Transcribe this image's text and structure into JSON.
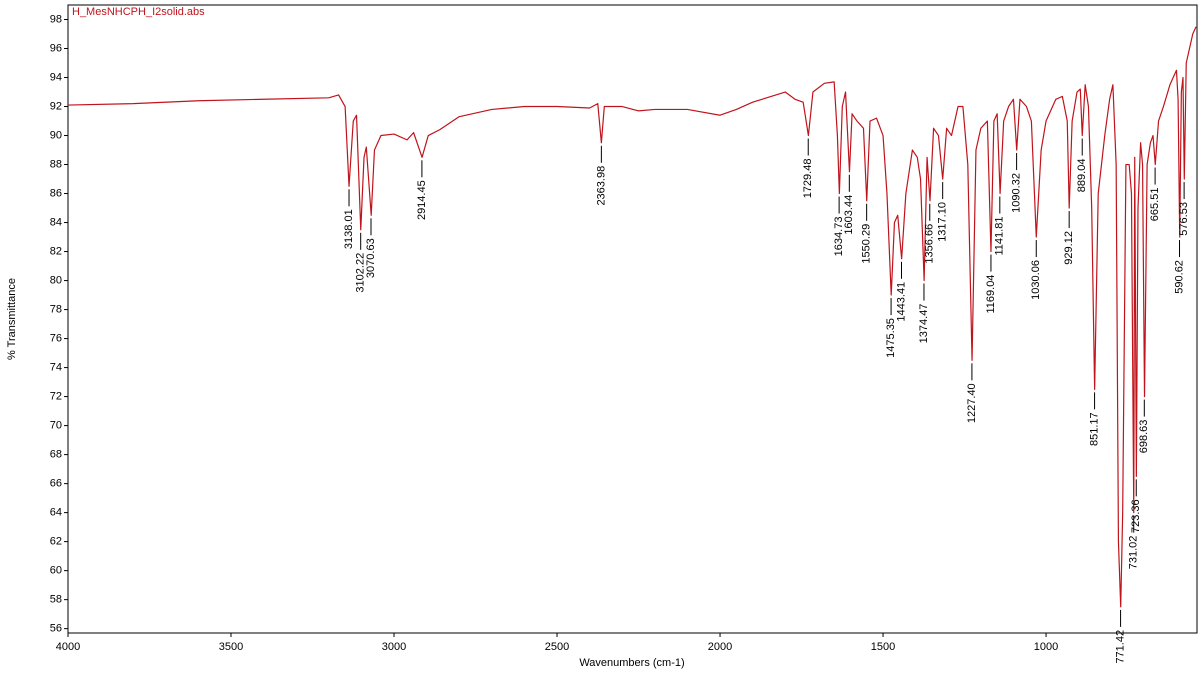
{
  "chart_data": {
    "type": "line",
    "title": "H_MesNHCPH_I2solid.abs",
    "xlabel": "Wavenumbers (cm-1)",
    "ylabel": "% Transmittance",
    "color": "#c0141c",
    "xlim": [
      4000,
      537
    ],
    "ylim": [
      55.7,
      99
    ],
    "xticks": [
      4000,
      3500,
      3000,
      2500,
      2000,
      1500,
      1000
    ],
    "yticks": [
      56,
      58,
      60,
      62,
      64,
      66,
      68,
      70,
      72,
      74,
      76,
      78,
      80,
      82,
      84,
      86,
      88,
      90,
      92,
      94,
      96,
      98
    ],
    "x": [
      4000,
      3800,
      3600,
      3400,
      3200,
      3170,
      3150,
      3138,
      3125,
      3115,
      3102,
      3092,
      3085,
      3070,
      3060,
      3040,
      3000,
      2960,
      2940,
      2914,
      2895,
      2860,
      2800,
      2700,
      2600,
      2500,
      2400,
      2375,
      2364,
      2355,
      2300,
      2250,
      2200,
      2100,
      2000,
      1950,
      1900,
      1800,
      1770,
      1745,
      1729,
      1715,
      1680,
      1650,
      1640,
      1634,
      1625,
      1615,
      1603,
      1595,
      1580,
      1560,
      1550,
      1540,
      1520,
      1500,
      1488,
      1475,
      1465,
      1455,
      1443,
      1430,
      1410,
      1395,
      1385,
      1374,
      1365,
      1356,
      1345,
      1330,
      1317,
      1305,
      1290,
      1270,
      1255,
      1240,
      1227,
      1215,
      1200,
      1180,
      1169,
      1160,
      1150,
      1141,
      1130,
      1115,
      1100,
      1090,
      1080,
      1060,
      1045,
      1030,
      1015,
      1000,
      970,
      950,
      935,
      929,
      920,
      905,
      895,
      889,
      880,
      870,
      860,
      851,
      840,
      820,
      805,
      795,
      785,
      778,
      771,
      765,
      755,
      745,
      738,
      731,
      728,
      723,
      718,
      710,
      704,
      698,
      690,
      680,
      672,
      665,
      655,
      640,
      620,
      600,
      595,
      590,
      585,
      580,
      576,
      570,
      560,
      550,
      540
    ],
    "values": [
      92.1,
      92.2,
      92.4,
      92.5,
      92.6,
      92.8,
      92,
      86.5,
      91,
      91.4,
      83.5,
      88.5,
      89.2,
      84.5,
      89,
      90,
      90.1,
      89.7,
      90.2,
      88.5,
      90,
      90.4,
      91.3,
      91.8,
      92,
      92,
      91.9,
      92.2,
      89.5,
      92,
      92,
      91.7,
      91.8,
      91.8,
      91.4,
      91.8,
      92.3,
      93,
      92.5,
      92.3,
      90,
      93,
      93.6,
      93.7,
      90,
      86,
      92,
      93,
      87.5,
      91.5,
      91,
      90.5,
      85.5,
      91,
      91.2,
      90,
      86,
      79,
      84,
      84.5,
      81.5,
      86,
      89,
      88.5,
      87,
      80,
      88.5,
      85.5,
      90.5,
      90,
      87,
      90.5,
      90,
      92,
      92,
      88,
      74.5,
      89,
      90.5,
      91,
      82,
      91,
      91.5,
      86,
      91,
      92,
      92.5,
      89,
      92.5,
      92,
      91,
      83,
      89,
      91,
      92.5,
      92.7,
      91,
      85,
      91,
      93,
      93.2,
      90,
      93.5,
      92,
      85,
      72.5,
      86,
      90,
      92.5,
      93.5,
      88,
      62,
      57.5,
      64,
      88,
      88,
      86,
      64,
      88.5,
      66.5,
      85,
      89.5,
      88,
      72,
      88,
      89.5,
      90,
      88,
      91,
      92,
      93.5,
      94.5,
      92.5,
      83,
      93,
      94,
      87,
      95,
      96,
      97,
      97.5
    ],
    "peaks": [
      {
        "x": 3138.01,
        "y": 86.5
      },
      {
        "x": 3102.22,
        "y": 83.5
      },
      {
        "x": 3070.63,
        "y": 84.5
      },
      {
        "x": 2914.45,
        "y": 88.5
      },
      {
        "x": 2363.98,
        "y": 89.5
      },
      {
        "x": 1729.48,
        "y": 90
      },
      {
        "x": 1634.73,
        "y": 86
      },
      {
        "x": 1603.44,
        "y": 87.5
      },
      {
        "x": 1550.29,
        "y": 85.5
      },
      {
        "x": 1475.35,
        "y": 79
      },
      {
        "x": 1443.41,
        "y": 81.5
      },
      {
        "x": 1374.47,
        "y": 80
      },
      {
        "x": 1356.66,
        "y": 85.5
      },
      {
        "x": {
          "value": 1317.1,
          "label": "1317.10"
        },
        "y": 87
      },
      {
        "x": {
          "value": 1227.4,
          "label": "1227.40"
        },
        "y": 74.5
      },
      {
        "x": 1169.04,
        "y": 82
      },
      {
        "x": 1141.81,
        "y": 86
      },
      {
        "x": 1090.32,
        "y": 89
      },
      {
        "x": 1030.06,
        "y": 83
      },
      {
        "x": 929.12,
        "y": 85
      },
      {
        "x": 889.04,
        "y": 90
      },
      {
        "x": 851.17,
        "y": 72.5
      },
      {
        "x": 771.42,
        "y": 57.5
      },
      {
        "x": 731.02,
        "y": 64
      },
      {
        "x": 723.36,
        "y": 66.5
      },
      {
        "x": 698.63,
        "y": 72
      },
      {
        "x": 665.51,
        "y": 88
      },
      {
        "x": 590.62,
        "y": 83
      },
      {
        "x": 576.53,
        "y": 87
      }
    ]
  }
}
